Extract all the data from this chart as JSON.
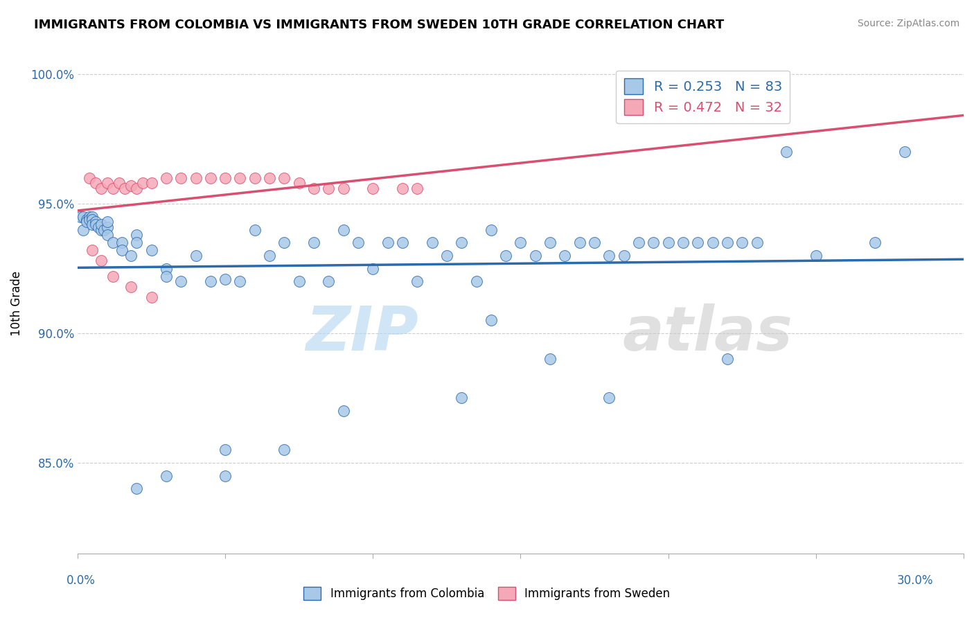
{
  "title": "IMMIGRANTS FROM COLOMBIA VS IMMIGRANTS FROM SWEDEN 10TH GRADE CORRELATION CHART",
  "source": "Source: ZipAtlas.com",
  "ylabel": "10th Grade",
  "xlim": [
    0.0,
    0.3
  ],
  "ylim": [
    0.815,
    1.008
  ],
  "colombia_R": 0.253,
  "colombia_N": 83,
  "sweden_R": 0.472,
  "sweden_N": 32,
  "colombia_color": "#a8c8e8",
  "sweden_color": "#f4a8b8",
  "colombia_line_color": "#2a6aad",
  "sweden_line_color": "#d94f70",
  "watermark_zip": "ZIP",
  "watermark_atlas": "atlas",
  "colombia_scatter_x": [
    0.001,
    0.002,
    0.002,
    0.003,
    0.003,
    0.004,
    0.004,
    0.005,
    0.005,
    0.005,
    0.006,
    0.006,
    0.007,
    0.008,
    0.008,
    0.009,
    0.01,
    0.01,
    0.01,
    0.012,
    0.015,
    0.015,
    0.018,
    0.02,
    0.02,
    0.025,
    0.03,
    0.03,
    0.035,
    0.04,
    0.045,
    0.05,
    0.05,
    0.055,
    0.06,
    0.065,
    0.07,
    0.075,
    0.08,
    0.085,
    0.09,
    0.095,
    0.1,
    0.105,
    0.11,
    0.115,
    0.12,
    0.125,
    0.13,
    0.135,
    0.14,
    0.145,
    0.15,
    0.155,
    0.16,
    0.165,
    0.17,
    0.175,
    0.18,
    0.185,
    0.19,
    0.195,
    0.2,
    0.205,
    0.21,
    0.215,
    0.22,
    0.225,
    0.23,
    0.24,
    0.25,
    0.27,
    0.28,
    0.13,
    0.14,
    0.16,
    0.18,
    0.22,
    0.09,
    0.07,
    0.05,
    0.03,
    0.02
  ],
  "colombia_scatter_y": [
    0.945,
    0.945,
    0.94,
    0.944,
    0.943,
    0.945,
    0.944,
    0.945,
    0.944,
    0.942,
    0.943,
    0.942,
    0.941,
    0.94,
    0.942,
    0.94,
    0.941,
    0.943,
    0.938,
    0.935,
    0.935,
    0.932,
    0.93,
    0.938,
    0.935,
    0.932,
    0.925,
    0.922,
    0.92,
    0.93,
    0.92,
    0.921,
    0.855,
    0.92,
    0.94,
    0.93,
    0.935,
    0.92,
    0.935,
    0.92,
    0.94,
    0.935,
    0.925,
    0.935,
    0.935,
    0.92,
    0.935,
    0.93,
    0.935,
    0.92,
    0.94,
    0.93,
    0.935,
    0.93,
    0.935,
    0.93,
    0.935,
    0.935,
    0.93,
    0.93,
    0.935,
    0.935,
    0.935,
    0.935,
    0.935,
    0.935,
    0.935,
    0.935,
    0.935,
    0.97,
    0.93,
    0.935,
    0.97,
    0.875,
    0.905,
    0.89,
    0.875,
    0.89,
    0.87,
    0.855,
    0.845,
    0.845,
    0.84
  ],
  "sweden_scatter_x": [
    0.004,
    0.006,
    0.008,
    0.01,
    0.012,
    0.014,
    0.016,
    0.018,
    0.02,
    0.022,
    0.025,
    0.03,
    0.035,
    0.04,
    0.045,
    0.05,
    0.055,
    0.06,
    0.065,
    0.07,
    0.075,
    0.08,
    0.085,
    0.09,
    0.1,
    0.11,
    0.115,
    0.005,
    0.008,
    0.012,
    0.018,
    0.025
  ],
  "sweden_scatter_y": [
    0.96,
    0.958,
    0.956,
    0.958,
    0.956,
    0.958,
    0.956,
    0.957,
    0.956,
    0.958,
    0.958,
    0.96,
    0.96,
    0.96,
    0.96,
    0.96,
    0.96,
    0.96,
    0.96,
    0.96,
    0.958,
    0.956,
    0.956,
    0.956,
    0.956,
    0.956,
    0.956,
    0.932,
    0.928,
    0.922,
    0.918,
    0.914
  ]
}
